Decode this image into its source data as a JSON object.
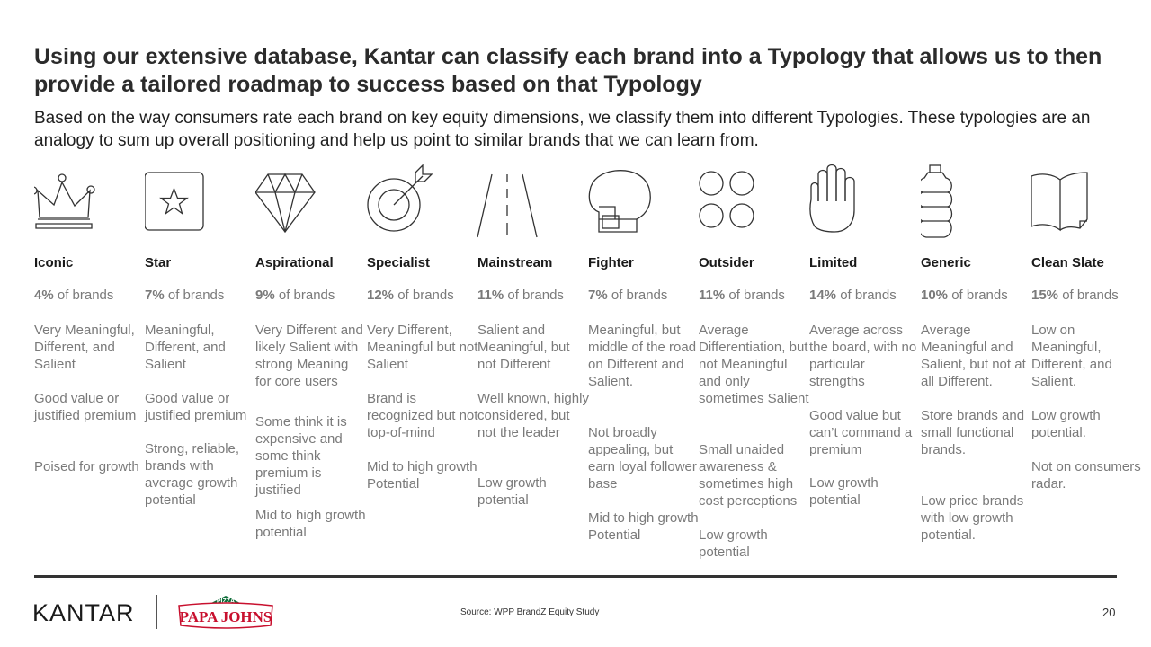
{
  "header": {
    "title": "Using our extensive database, Kantar can classify each brand into a Typology that allows us to then provide a tailored roadmap to success based on that Typology",
    "subtitle": "Based on the way consumers rate each brand on key equity dimensions, we classify them into different Typologies. These typologies are an analogy to sum up overall positioning and help us point to similar brands that we can learn from."
  },
  "typologies": [
    {
      "icon": "crown-icon",
      "name": "Iconic",
      "pct": "4%",
      "pct_suffix": " of brands",
      "d1": "Very Meaningful, Different, and Salient",
      "d2": "Good value or justified premium",
      "d3": "Poised for growth"
    },
    {
      "icon": "star-icon",
      "name": "Star",
      "pct": "7%",
      "pct_suffix": " of brands",
      "d1": "Meaningful, Different, and Salient",
      "d2": "Good value or justified premium",
      "d3": "Strong, reliable, brands with average growth potential"
    },
    {
      "icon": "diamond-icon",
      "name": "Aspirational",
      "pct": "9%",
      "pct_suffix": " of brands",
      "d1": "Very Different and likely Salient with strong Meaning for core users",
      "d2": "Some think it is expensive and some think premium is justified",
      "d3": "Mid to high growth potential"
    },
    {
      "icon": "target-icon",
      "name": "Specialist",
      "pct": "12%",
      "pct_suffix": " of brands",
      "d1": "Very Different, Meaningful but not Salient",
      "d2": "Brand is recognized but not top-of-mind",
      "d3": "Mid to high growth Potential"
    },
    {
      "icon": "road-icon",
      "name": "Mainstream",
      "pct": "11%",
      "pct_suffix": " of brands",
      "d1": "Salient and Meaningful, but not Different",
      "d2": "Well known, highly considered, but not the leader",
      "d3": "Low growth potential"
    },
    {
      "icon": "boxing-glove-icon",
      "name": "Fighter",
      "pct": "7%",
      "pct_suffix": " of brands",
      "d1": "Meaningful, but middle of the road on Different and Salient.",
      "d2": "Not broadly appealing, but earn loyal follower base",
      "d3": "Mid to high growth Potential"
    },
    {
      "icon": "circles-icon",
      "name": "Outsider",
      "pct": "11%",
      "pct_suffix": " of brands",
      "d1": "Average Differentiation, but not Meaningful and only sometimes Salient",
      "d2": "Small unaided awareness & sometimes high cost perceptions",
      "d3": "Low growth potential"
    },
    {
      "icon": "hand-icon",
      "name": "Limited",
      "pct": "14%",
      "pct_suffix": " of brands",
      "d1": "Average across the board, with no particular strengths",
      "d2": "Good value but can’t command a premium",
      "d3": "Low growth potential"
    },
    {
      "icon": "bottle-icon",
      "name": "Generic",
      "pct": "10%",
      "pct_suffix": " of brands",
      "d1": "Average Meaningful and Salient, but not at all Different.",
      "d2": "Store brands and small functional brands.",
      "d3": "Low price brands with low growth potential."
    },
    {
      "icon": "book-icon",
      "name": "Clean Slate",
      "pct": "15%",
      "pct_suffix": " of brands",
      "d1": "Low on Meaningful, Different, and Salient.",
      "d2": "Low growth potential.",
      "d3": "Not on consumers radar."
    }
  ],
  "footer": {
    "kantar_logo": "KANTAR",
    "papa_top": "PIZZA",
    "papa_main": "PAPA JOHNS",
    "source": "Source: WPP BrandZ Equity Study",
    "page_number": "20"
  },
  "colors": {
    "text_dark": "#1a1a1a",
    "text_grey": "#7a7a7a",
    "papa_red": "#c8102e",
    "papa_green": "#0f6e3a"
  }
}
